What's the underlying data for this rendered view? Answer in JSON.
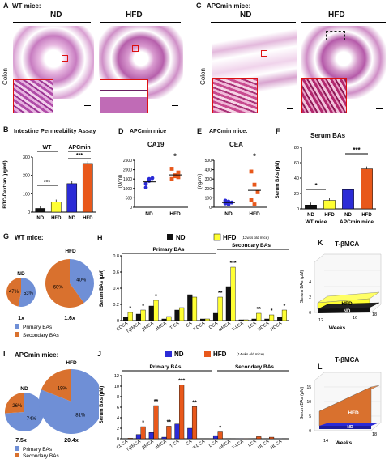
{
  "panelA": {
    "letter": "A",
    "title": "WT mice:",
    "groups": [
      "ND",
      "HFD"
    ],
    "tissue": "Colon"
  },
  "panelC": {
    "letter": "C",
    "title": "APCmin mice:",
    "groups": [
      "ND",
      "HFD"
    ],
    "tissue": "Colon"
  },
  "panelB": {
    "letter": "B",
    "title": "Intestine Permeability Assay",
    "ylabel": "FITC-Dextran (µg/ml)",
    "groupLabels": [
      "WT",
      "APCmin"
    ],
    "sig": [
      "***",
      "***"
    ],
    "chart_data": {
      "type": "bar",
      "categories": [
        "ND",
        "HFD",
        "ND",
        "HFD"
      ],
      "values": [
        20,
        55,
        155,
        265
      ],
      "ylim": [
        0,
        300
      ],
      "yticks": [
        0,
        100,
        200,
        300
      ],
      "colors": [
        "#111111",
        "#ffff33",
        "#2b2bd6",
        "#e8581b"
      ]
    }
  },
  "panelD": {
    "letter": "D",
    "pretitle": "APCmin mice",
    "title": "CA19",
    "ylabel": "(U/ml)",
    "sig": "*",
    "chart_data": {
      "type": "scatter",
      "categories": [
        "ND",
        "HFD"
      ],
      "points": [
        [
          1050,
          1400,
          1550,
          1250,
          1500
        ],
        [
          1500,
          1650,
          1850,
          2050,
          1700,
          1600
        ]
      ],
      "means": [
        1350,
        1720
      ],
      "ylim": [
        0,
        2500
      ],
      "yticks": [
        0,
        500,
        1000,
        1500,
        2000,
        2500
      ]
    }
  },
  "panelE": {
    "letter": "E",
    "pretitle": "APCmin mice:",
    "title": "CEA",
    "ylabel": "(ng/ml)",
    "sig": "*",
    "chart_data": {
      "type": "scatter",
      "categories": [
        "ND",
        "HFD"
      ],
      "points": [
        [
          40,
          60,
          50,
          70,
          30
        ],
        [
          380,
          240,
          160,
          80,
          30
        ]
      ],
      "means": [
        50,
        180
      ],
      "ylim": [
        0,
        500
      ],
      "yticks": [
        0,
        100,
        200,
        300,
        400,
        500
      ]
    }
  },
  "panelF": {
    "letter": "F",
    "title": "Serum BAs",
    "ylabel": "Serum BAs (µM)",
    "groupLabels": [
      "WT mice",
      "APCmin mice"
    ],
    "sig": [
      "*",
      "***"
    ],
    "chart_data": {
      "type": "bar",
      "categories": [
        "ND",
        "HFD",
        "ND",
        "HFD"
      ],
      "values": [
        5,
        11,
        25,
        52
      ],
      "ylim": [
        0,
        80
      ],
      "yticks": [
        0,
        20,
        40,
        60,
        80
      ],
      "colors": [
        "#111111",
        "#ffff33",
        "#2b2bd6",
        "#e8581b"
      ]
    }
  },
  "panelG": {
    "letter": "G",
    "title": "WT mice:",
    "legend": [
      "Primary BAs",
      "Secondary BAs"
    ],
    "chart_data": {
      "type": "pie",
      "pies": [
        {
          "label": "ND",
          "scale": "1x",
          "primary": 53,
          "secondary": 47
        },
        {
          "label": "HFD",
          "scale": "1.6x",
          "primary": 40,
          "secondary": 60
        }
      ]
    }
  },
  "panelH": {
    "letter": "H",
    "legend": [
      "ND",
      "HFD"
    ],
    "note": "(12wks old mice)",
    "primaryLabel": "Primary BAs",
    "secondaryLabel": "Secondary BAs",
    "ylabel": "Serum BAs (µM)",
    "chart_data": {
      "type": "bar",
      "categories": [
        "CDCA",
        "T-βMCA",
        "βMCA",
        "αMCA",
        "T-CA",
        "CA",
        "T-DCA",
        "DCA",
        "ωMCA",
        "T-LCA",
        "LCA",
        "UDCA",
        "HDCA"
      ],
      "series": [
        {
          "name": "ND",
          "values": [
            0.04,
            0.08,
            0.18,
            0.02,
            0.13,
            0.32,
            0.02,
            0.09,
            0.42,
            0.01,
            0.02,
            0.02,
            0.04
          ]
        },
        {
          "name": "HFD",
          "values": [
            0.1,
            0.13,
            0.25,
            0.05,
            0.16,
            0.29,
            0.02,
            0.29,
            0.66,
            0.01,
            0.09,
            0.07,
            0.13
          ]
        }
      ],
      "sig": [
        "*",
        "*",
        "*",
        "",
        "",
        "",
        "",
        "**",
        "***",
        "",
        "**",
        "*",
        "*"
      ],
      "ylim": [
        0,
        0.8
      ],
      "yticks": [
        0,
        0.2,
        0.4,
        0.6,
        0.8
      ]
    }
  },
  "panelK": {
    "letter": "K",
    "title": "T-βMCA",
    "ylabel": "Serum BAs (µM)",
    "xlabel": "Weeks",
    "ticks": [
      "12",
      "16",
      "18"
    ],
    "yticks": [
      "0",
      "2",
      "4"
    ],
    "layers": [
      "HFD",
      "ND"
    ]
  },
  "panelI": {
    "letter": "I",
    "title": "APCmin mice:",
    "legend": [
      "Primary BAs",
      "Secondary BAs"
    ],
    "chart_data": {
      "type": "pie",
      "pies": [
        {
          "label": "ND",
          "scale": "7.5x",
          "primary": 74,
          "secondary": 26
        },
        {
          "label": "HFD",
          "scale": "20.4x",
          "primary": 81,
          "secondary": 19
        }
      ]
    }
  },
  "panelJ": {
    "letter": "J",
    "legend": [
      "ND",
      "HFD"
    ],
    "note": "(14wks old mice)",
    "primaryLabel": "Primary BAs",
    "secondaryLabel": "Secondary BAs",
    "ylabel": "Serum BAs (µM)",
    "chart_data": {
      "type": "bar",
      "categories": [
        "CDCA",
        "T-βMCA",
        "βMCA",
        "αMCA",
        "T-CA",
        "CA",
        "T-DCA",
        "DCA",
        "ωMCA",
        "T-LCA",
        "LCA",
        "UDCA",
        "HDCA"
      ],
      "series": [
        {
          "name": "ND",
          "values": [
            0.05,
            0.8,
            1.2,
            0.3,
            2.8,
            2.0,
            0.05,
            0.6,
            0.05,
            0.02,
            0.05,
            0.05,
            0.02
          ]
        },
        {
          "name": "HFD",
          "values": [
            0.1,
            2.3,
            6.3,
            2.4,
            10.2,
            6.1,
            0.05,
            1.3,
            0.05,
            0.02,
            0.4,
            0.3,
            0.05
          ]
        }
      ],
      "sig": [
        "",
        "*",
        "**",
        "**",
        "***",
        "**",
        "",
        "*",
        "",
        "",
        "",
        "",
        ""
      ],
      "ylim": [
        0,
        12
      ],
      "yticks": [
        0,
        2,
        4,
        6,
        8,
        10,
        12
      ]
    }
  },
  "panelL": {
    "letter": "L",
    "title": "T-βMCA",
    "ylabel": "Serum BAs (µM)",
    "xlabel": "Weeks",
    "ticks": [
      "14",
      "18"
    ],
    "yticks": [
      "0",
      "5",
      "10",
      "15"
    ],
    "layers": [
      "HFD",
      "ND"
    ]
  },
  "colors": {
    "nd_wt": "#111111",
    "hfd_wt": "#ffff33",
    "nd_apc": "#2b2bd6",
    "hfd_apc": "#e8581b",
    "primary": "#6f8fd6",
    "secondary": "#d9712e",
    "hist": "#c266b8"
  }
}
